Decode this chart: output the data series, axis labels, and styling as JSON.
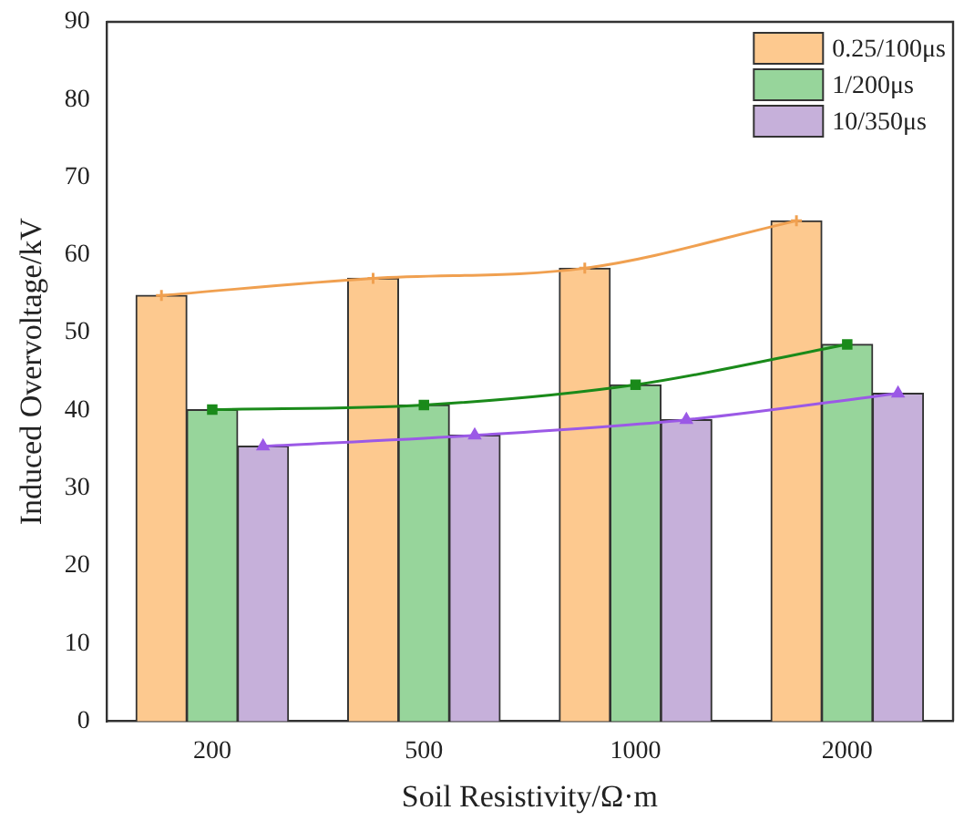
{
  "chart_data": {
    "type": "bar",
    "xlabel": "Soil Resistivity/Ω·m",
    "ylabel": "Induced Overvoltage/kV",
    "categories": [
      "200",
      "500",
      "1000",
      "2000"
    ],
    "ylim": [
      0,
      90
    ],
    "yticks": [
      0,
      10,
      20,
      30,
      40,
      50,
      60,
      70,
      80,
      90
    ],
    "grid": false,
    "legend": "top right",
    "series": [
      {
        "name": "0.25/100μs",
        "color": "#fdc98f",
        "values": [
          54.8,
          57.0,
          58.3,
          64.4
        ]
      },
      {
        "name": "1/200μs",
        "color": "#97d59b",
        "values": [
          40.1,
          40.7,
          43.3,
          48.5
        ]
      },
      {
        "name": "10/350μs",
        "color": "#c6b0da",
        "values": [
          35.4,
          36.8,
          38.8,
          42.2
        ]
      },
      {
        "type": "line",
        "color": "#f0a050",
        "marker": "cross",
        "values": [
          54.8,
          57.0,
          58.3,
          64.4
        ]
      },
      {
        "type": "line",
        "color": "#1a8a1a",
        "marker": "square",
        "values": [
          40.1,
          40.7,
          43.3,
          48.5
        ]
      },
      {
        "type": "line",
        "color": "#9b59e6",
        "marker": "triangle",
        "values": [
          35.4,
          36.8,
          38.8,
          42.2
        ]
      }
    ]
  }
}
